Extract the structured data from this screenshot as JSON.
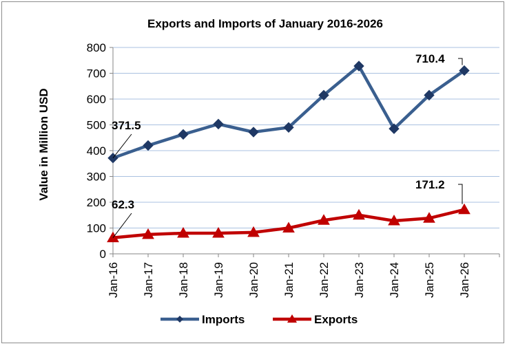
{
  "chart_data": {
    "type": "line",
    "title": "Exports and Imports of January 2016-2026",
    "xlabel": "",
    "ylabel": "Value in Million USD",
    "categories": [
      "Jan-16",
      "Jan-17",
      "Jan-18",
      "Jan-19",
      "Jan-20",
      "Jan-21",
      "Jan-22",
      "Jan-23",
      "Jan-24",
      "Jan-25",
      "Jan-26"
    ],
    "ylim": [
      0,
      800
    ],
    "yticks": [
      0,
      100,
      200,
      300,
      400,
      500,
      600,
      700,
      800
    ],
    "grid": true,
    "legend": "bottom",
    "series": [
      {
        "name": "Imports",
        "color": "#3a5f8f",
        "marker": "diamond",
        "values": [
          371.5,
          420,
          463,
          503,
          472,
          490,
          615,
          728,
          485,
          615,
          710.4
        ]
      },
      {
        "name": "Exports",
        "color": "#c00000",
        "marker": "triangle",
        "values": [
          62.3,
          75,
          80,
          80,
          83,
          100,
          130,
          150,
          128,
          138,
          171.2
        ]
      }
    ],
    "annotations": [
      "371.5",
      "710.4",
      "62.3",
      "171.2"
    ]
  }
}
